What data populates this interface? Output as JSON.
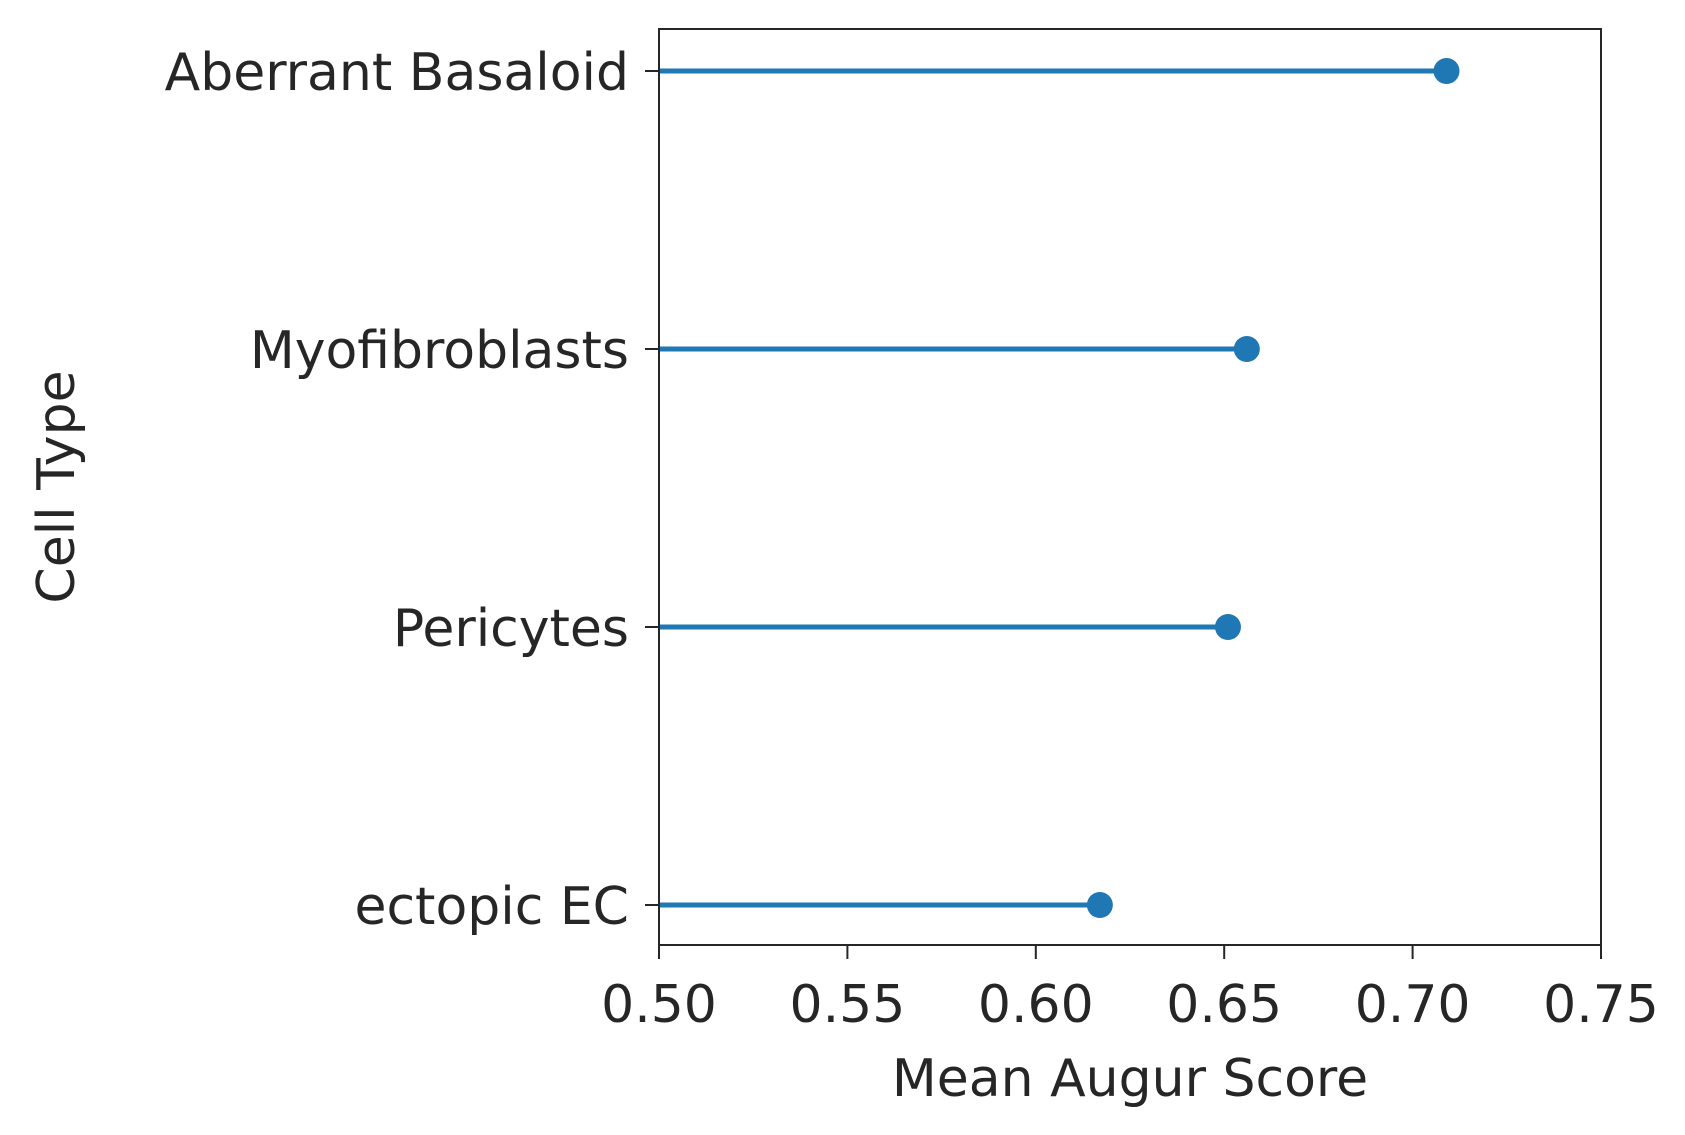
{
  "chart_data": {
    "type": "lollipop",
    "orientation": "horizontal",
    "title": "",
    "xlabel": "Mean Augur Score",
    "ylabel": "Cell Type",
    "xlim": [
      0.5,
      0.75
    ],
    "xticks": [
      "0.50",
      "0.55",
      "0.60",
      "0.65",
      "0.70",
      "0.75"
    ],
    "grid": false,
    "categories": [
      "Aberrant Basaloid",
      "Myofibroblasts",
      "Pericytes",
      "ectopic EC"
    ],
    "values": [
      0.709,
      0.656,
      0.651,
      0.617
    ],
    "color": "#1f77b4",
    "axis_color": "#262626"
  }
}
